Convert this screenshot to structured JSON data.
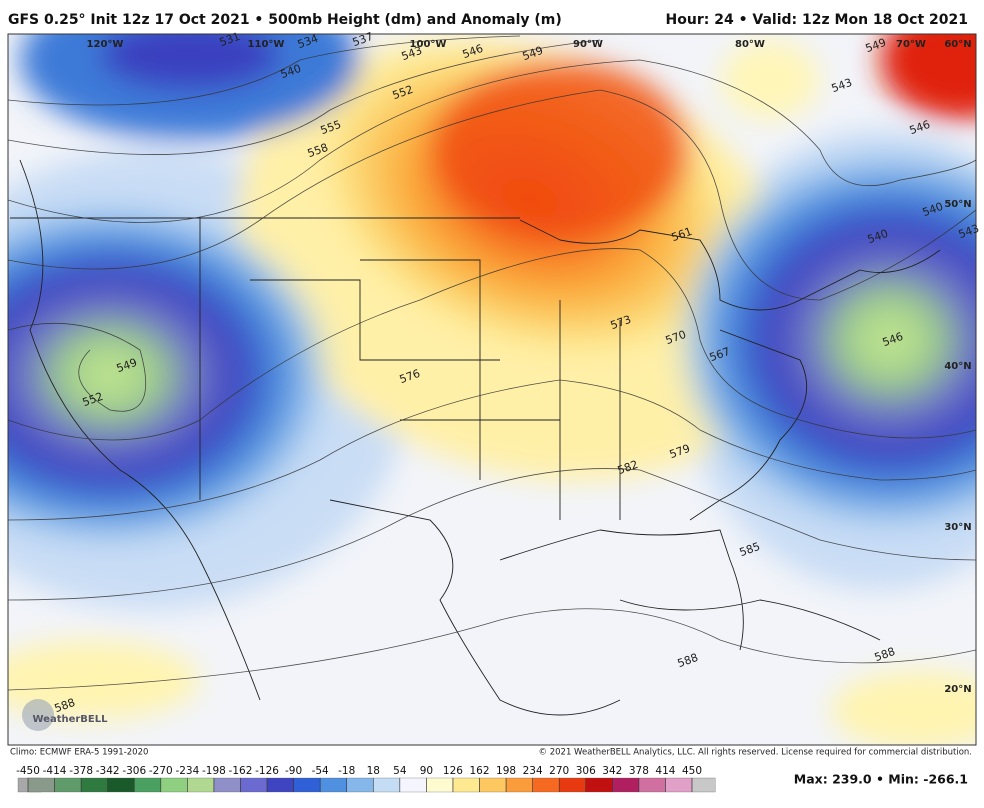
{
  "header": {
    "title": "GFS 0.25° Init 12z 17 Oct 2021 • 500mb Height (dm) and Anomaly (m)",
    "valid": "Hour: 24 • Valid: 12z Mon 18 Oct 2021"
  },
  "map": {
    "longitude_labels": [
      "120°W",
      "110°W",
      "100°W",
      "90°W",
      "80°W",
      "70°W",
      "60°N"
    ],
    "latitude_labels": [
      "50°N",
      "40°N",
      "30°N",
      "20°N"
    ],
    "contour_labels": [
      "531",
      "534",
      "537",
      "540",
      "543",
      "546",
      "549",
      "552",
      "555",
      "558",
      "561",
      "567",
      "570",
      "573",
      "576",
      "579",
      "582",
      "585",
      "588",
      "588",
      "588",
      "549",
      "552",
      "540",
      "540",
      "543",
      "549",
      "546",
      "543",
      "546"
    ],
    "logo": "WeatherBELL"
  },
  "footer": {
    "climo": "Climo: ECMWF ERA-5 1991-2020",
    "copyright": "© 2021 WeatherBELL Analytics, LLC. All rights reserved. License required for commercial distribution.",
    "extremes": "Max: 239.0 • Min: -266.1"
  },
  "colorbar": {
    "ticks": [
      -450,
      -414,
      -378,
      -342,
      -306,
      -270,
      -234,
      -198,
      -162,
      -126,
      -90,
      -54,
      -18,
      18,
      54,
      90,
      126,
      162,
      198,
      234,
      270,
      306,
      342,
      378,
      414,
      450
    ]
  }
}
